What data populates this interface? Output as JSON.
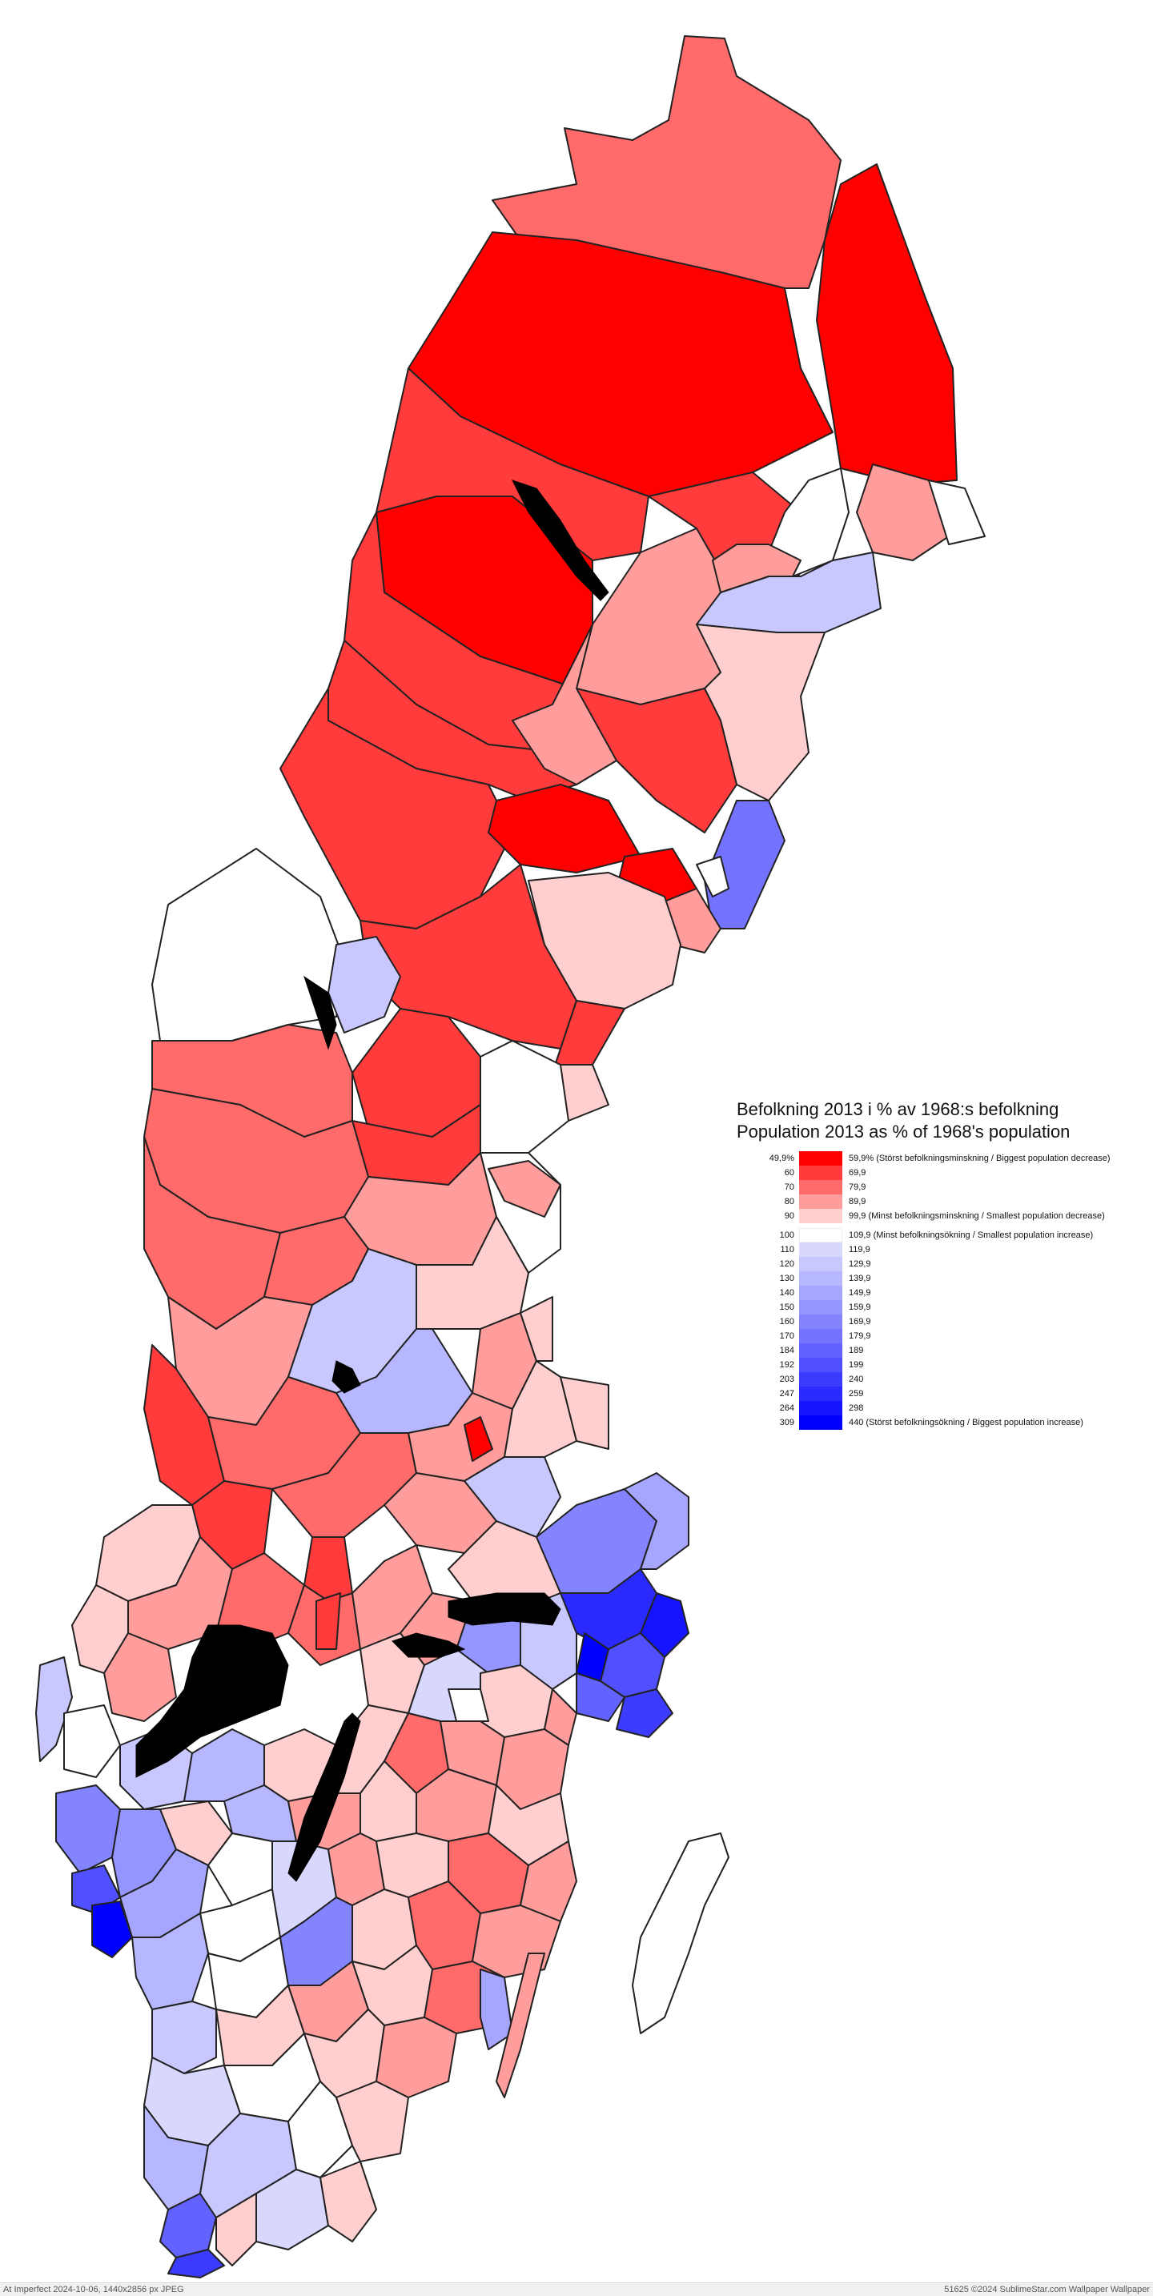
{
  "legend": {
    "title_sv": "Befolkning 2013 i % av 1968:s befolkning",
    "title_en": "Population 2013 as % of 1968's population",
    "classes": [
      {
        "low": "49,9%",
        "high": "59,9% (Störst befolkningsminskning / Biggest population decrease)",
        "color": "#ff0000"
      },
      {
        "low": "60",
        "high": "69,9",
        "color": "#ff3b3b"
      },
      {
        "low": "70",
        "high": "79,9",
        "color": "#ff6a6a"
      },
      {
        "low": "80",
        "high": "89,9",
        "color": "#ff9c9c"
      },
      {
        "low": "90",
        "high": "99,9 (Minst befolkningsminskning / Smallest population decrease)",
        "color": "#ffcfcf"
      },
      {
        "low": "100",
        "high": "109,9 (Minst befolkningsökning / Smallest population increase)",
        "color": "#ffffff"
      },
      {
        "low": "110",
        "high": "119,9",
        "color": "#d8d8ff"
      },
      {
        "low": "120",
        "high": "129,9",
        "color": "#c8c8ff"
      },
      {
        "low": "130",
        "high": "139,9",
        "color": "#b7b7ff"
      },
      {
        "low": "140",
        "high": "149,9",
        "color": "#a6a6ff"
      },
      {
        "low": "150",
        "high": "159,9",
        "color": "#9595ff"
      },
      {
        "low": "160",
        "high": "169,9",
        "color": "#8484ff"
      },
      {
        "low": "170",
        "high": "179,9",
        "color": "#7373ff"
      },
      {
        "low": "184",
        "high": "189",
        "color": "#6262ff"
      },
      {
        "low": "192",
        "high": "199",
        "color": "#5050ff"
      },
      {
        "low": "203",
        "high": "240",
        "color": "#3c3cff"
      },
      {
        "low": "247",
        "high": "259",
        "color": "#2a2aff"
      },
      {
        "low": "264",
        "high": "298",
        "color": "#1414ff"
      },
      {
        "low": "309",
        "high": "440 (Störst befolkningsökning / Biggest population increase)",
        "color": "#0000ff"
      }
    ]
  },
  "footer": {
    "left": "At Imperfect 2024-10-06, 1440x2856 px JPEG",
    "right": "51625 ©2024 SublimeStar.com Wallpaper Wallpaper"
  }
}
